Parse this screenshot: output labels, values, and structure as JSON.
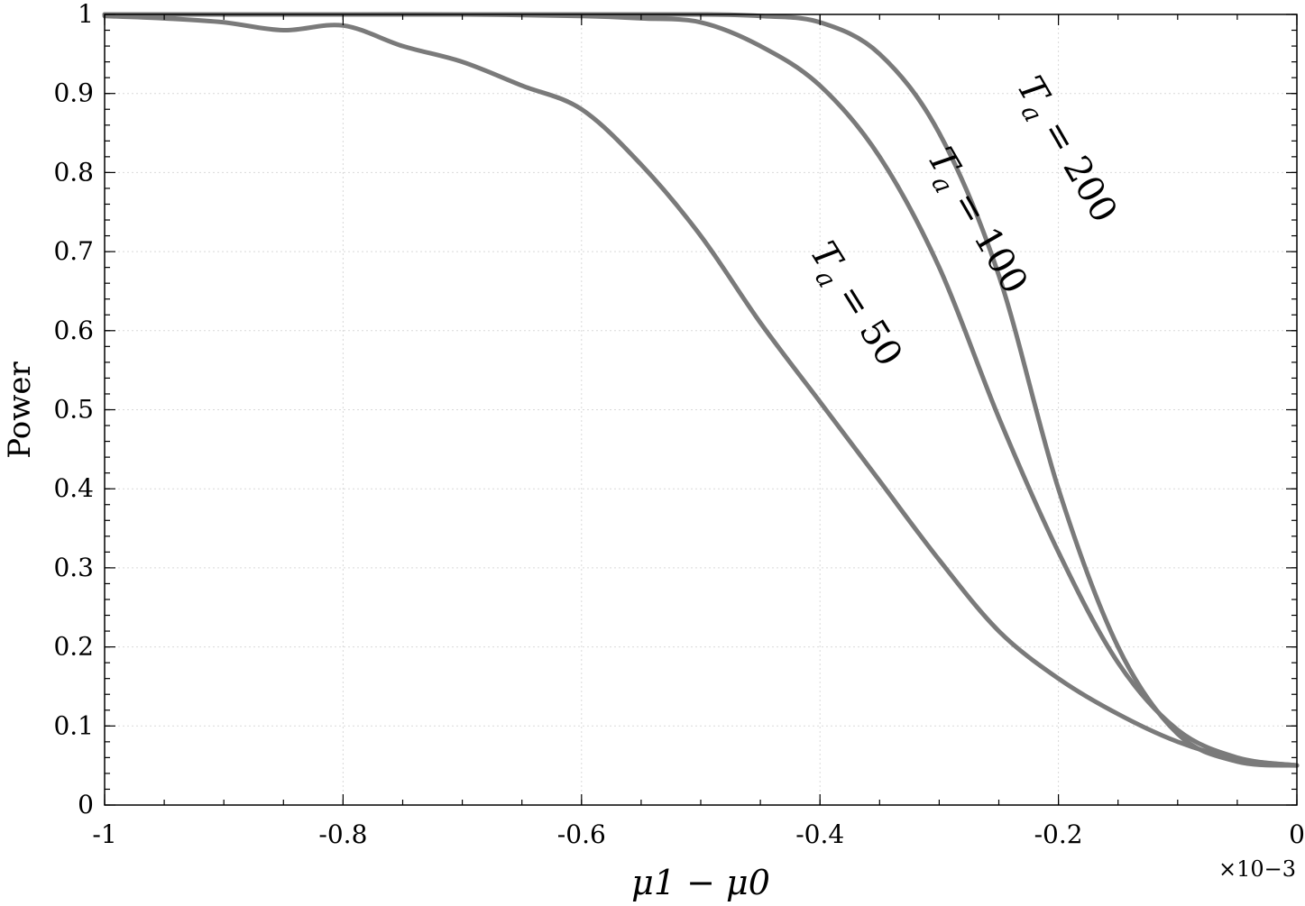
{
  "chart_data": {
    "type": "line",
    "xlabel": "μ1 − μ0",
    "ylabel": "Power",
    "x_multiplier": "×10−3",
    "xlim": [
      -1,
      0
    ],
    "ylim": [
      0,
      1
    ],
    "grid": true,
    "xticks": [
      -1,
      -0.8,
      -0.6,
      -0.4,
      -0.2,
      0
    ],
    "xtick_labels": [
      "-1",
      "-0.8",
      "-0.6",
      "-0.4",
      "-0.2",
      "0"
    ],
    "yticks": [
      0,
      0.1,
      0.2,
      0.3,
      0.4,
      0.5,
      0.6,
      0.7,
      0.8,
      0.9,
      1
    ],
    "ytick_labels": [
      "0",
      "0.1",
      "0.2",
      "0.3",
      "0.4",
      "0.5",
      "0.6",
      "0.7",
      "0.8",
      "0.9",
      "1"
    ],
    "line_color": "#7a7a7a",
    "series": [
      {
        "label": "Ta = 50",
        "label_parts": {
          "symbol": "T",
          "subscript": "a",
          "rest": " = 50"
        },
        "x": [
          -1,
          -0.95,
          -0.9,
          -0.85,
          -0.8,
          -0.75,
          -0.7,
          -0.65,
          -0.6,
          -0.55,
          -0.5,
          -0.45,
          -0.4,
          -0.35,
          -0.3,
          -0.25,
          -0.2,
          -0.15,
          -0.1,
          -0.05,
          0
        ],
        "y": [
          0.998,
          0.995,
          0.99,
          0.98,
          0.986,
          0.96,
          0.94,
          0.91,
          0.88,
          0.81,
          0.72,
          0.61,
          0.51,
          0.41,
          0.31,
          0.22,
          0.16,
          0.115,
          0.08,
          0.058,
          0.05
        ]
      },
      {
        "label": "Ta = 100",
        "label_parts": {
          "symbol": "T",
          "subscript": "a",
          "rest": " = 100"
        },
        "x": [
          -1,
          -0.9,
          -0.8,
          -0.7,
          -0.6,
          -0.55,
          -0.5,
          -0.45,
          -0.4,
          -0.35,
          -0.3,
          -0.25,
          -0.2,
          -0.15,
          -0.1,
          -0.05,
          0
        ],
        "y": [
          1,
          1,
          1,
          1,
          0.998,
          0.995,
          0.99,
          0.96,
          0.91,
          0.82,
          0.68,
          0.49,
          0.32,
          0.18,
          0.095,
          0.06,
          0.05
        ]
      },
      {
        "label": "Ta = 200",
        "label_parts": {
          "symbol": "T",
          "subscript": "a",
          "rest": " = 200"
        },
        "x": [
          -1,
          -0.8,
          -0.6,
          -0.5,
          -0.45,
          -0.4,
          -0.35,
          -0.3,
          -0.25,
          -0.2,
          -0.15,
          -0.1,
          -0.05,
          0
        ],
        "y": [
          1,
          1,
          1,
          1,
          0.998,
          0.99,
          0.95,
          0.85,
          0.67,
          0.4,
          0.2,
          0.09,
          0.055,
          0.05
        ]
      }
    ]
  }
}
